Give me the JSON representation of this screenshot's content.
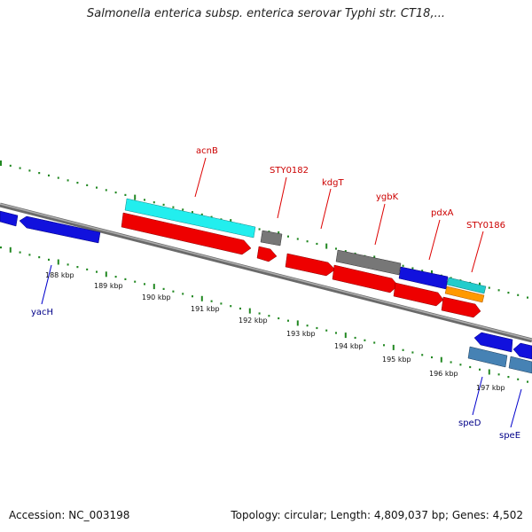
{
  "title": "Salmonella enterica subsp. enterica serovar Typhi str. CT18,...",
  "footer": {
    "accession": "Accession: NC_003198",
    "summary": "Topology: circular; Length: 4,809,037 bp; Genes: 4,502"
  },
  "colors": {
    "backbone": "#888888",
    "ticks": "#228822",
    "forward_gene": "#ff0000",
    "reverse_gene": "#0000ee",
    "cyan_gene": "#22eeee",
    "gray_gene": "#777777",
    "orange_gene": "#ff9900",
    "steel_gene": "#4682b4",
    "label_red": "#cc0000",
    "label_blue": "#000088"
  },
  "kbp_labels": [
    "188 kbp",
    "189 kbp",
    "190 kbp",
    "191 kbp",
    "192 kbp",
    "193 kbp",
    "194 kbp",
    "195 kbp",
    "196 kbp",
    "197 kbp"
  ],
  "gene_labels_top": [
    "acnB",
    "STY0182",
    "kdgT",
    "ygbK",
    "pdxA",
    "STY0186"
  ],
  "gene_labels_bottom": [
    "yacH",
    "speD",
    "speE"
  ]
}
